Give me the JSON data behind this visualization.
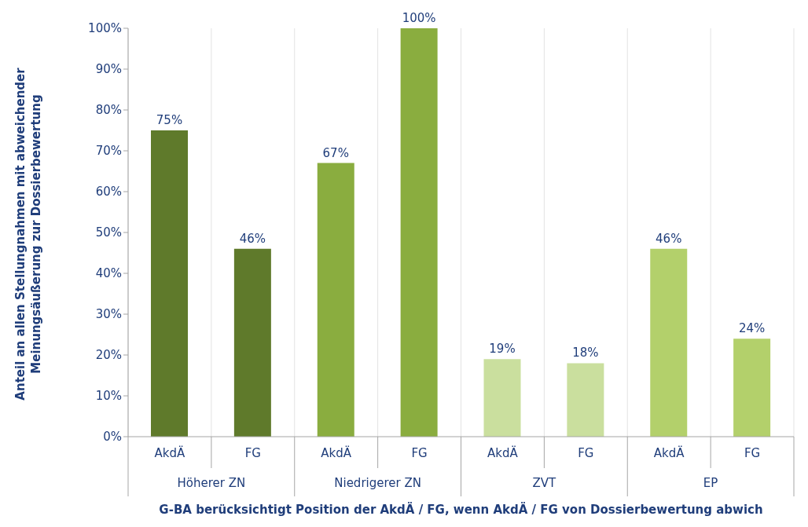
{
  "chart_data": {
    "type": "bar",
    "xlabel": "G-BA berücksichtigt Position der AkdÄ / FG, wenn AkdÄ / FG von Dossierbewertung abwich",
    "ylabel": "Anteil an allen Stellungnahmen mit abweichender Meinungsäußerung zur Dossierbewertung",
    "categories": [
      "AkdÄ",
      "FG",
      "AkdÄ",
      "FG",
      "AkdÄ",
      "FG",
      "AkdÄ",
      "FG"
    ],
    "values": [
      75,
      46,
      67,
      100,
      19,
      18,
      46,
      24
    ],
    "value_labels": [
      "75%",
      "46%",
      "67%",
      "100%",
      "19%",
      "18%",
      "46%",
      "24%"
    ],
    "colors": [
      "#5f7a2b",
      "#5f7a2b",
      "#8aad3f",
      "#8aad3f",
      "#cadf9e",
      "#cadf9e",
      "#b3d06b",
      "#b3d06b"
    ],
    "annotations": [
      "Höherer ZN",
      "Niedrigerer ZN",
      "ZVT",
      "EP"
    ],
    "ylim": [
      0,
      100
    ],
    "yticks": [
      {
        "value": 0,
        "label": "0%"
      },
      {
        "value": 10,
        "label": "10%"
      },
      {
        "value": 20,
        "label": "20%"
      },
      {
        "value": 30,
        "label": "30%"
      },
      {
        "value": 40,
        "label": "40%"
      },
      {
        "value": 50,
        "label": "50%"
      },
      {
        "value": 60,
        "label": "60%"
      },
      {
        "value": 70,
        "label": "70%"
      },
      {
        "value": 80,
        "label": "80%"
      },
      {
        "value": 90,
        "label": "90%"
      },
      {
        "value": 100,
        "label": "100%"
      }
    ],
    "grid": "x"
  }
}
